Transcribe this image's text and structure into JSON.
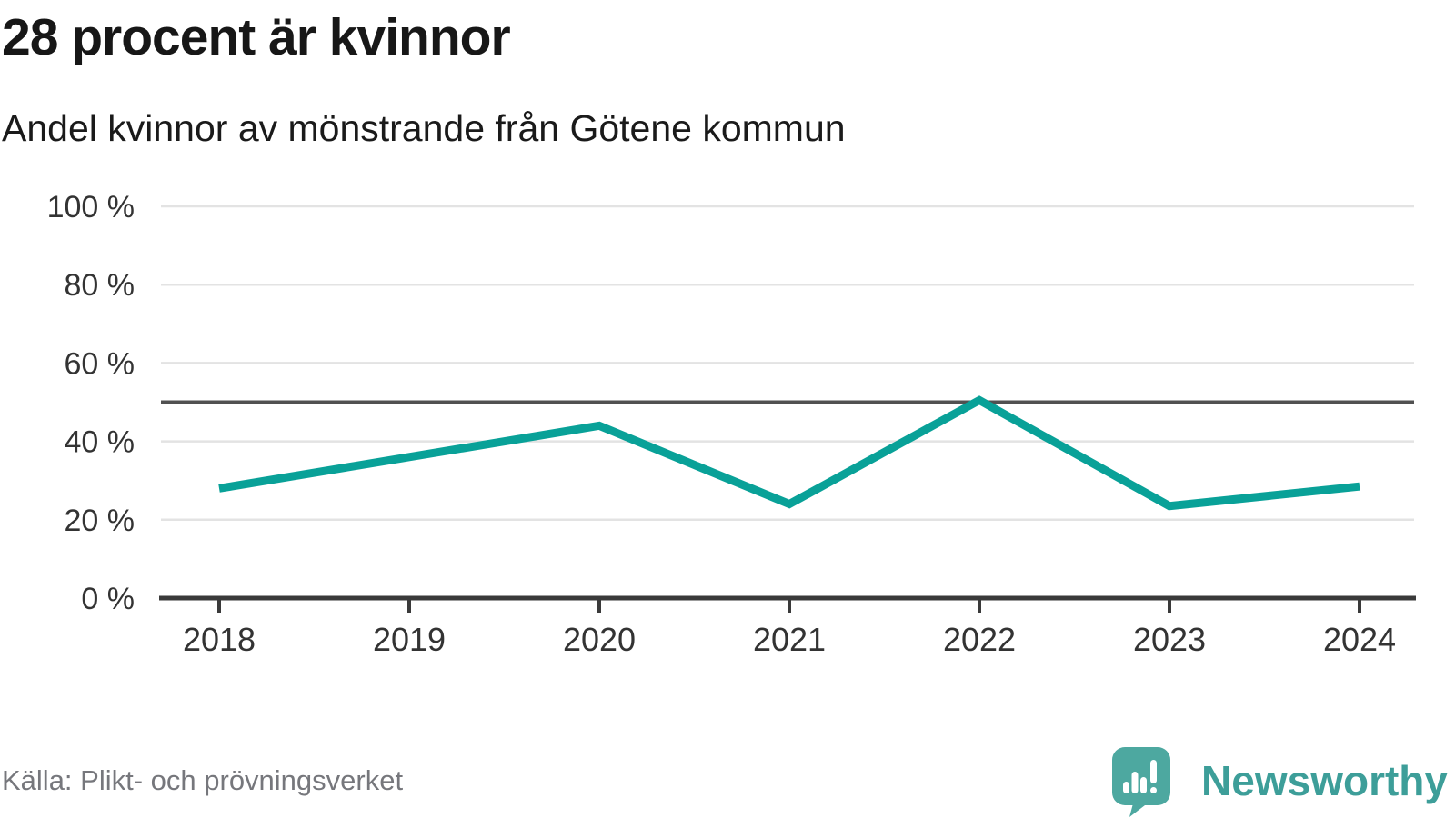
{
  "header": {
    "title": "28 procent är kvinnor",
    "subtitle": "Andel kvinnor av mönstrande från Götene kommun"
  },
  "footer": {
    "source": "Källa: Plikt- och prövningsverket",
    "brand": "Newsworthy"
  },
  "colors": {
    "line": "#09a198",
    "reference_line": "#515151",
    "grid": "#e3e3e3",
    "axis": "#3a3a3a",
    "tick_label": "#333333",
    "source_text": "#76777c",
    "brand_teal": "#3d9e99",
    "logo_icon_teal": "#4da8a0"
  },
  "chart_data": {
    "type": "line",
    "title": "28 procent är kvinnor",
    "subtitle": "Andel kvinnor av mönstrande från Götene kommun",
    "categories": [
      "2018",
      "2019",
      "2020",
      "2021",
      "2022",
      "2023",
      "2024"
    ],
    "values": [
      28,
      36,
      44,
      24,
      50.5,
      23.5,
      28.5
    ],
    "ylim": [
      0,
      100
    ],
    "yticks": [
      0,
      20,
      40,
      60,
      80,
      100
    ],
    "ytick_labels": [
      "0 %",
      "20 %",
      "40 %",
      "60 %",
      "80 %",
      "100 %"
    ],
    "reference_line": 50,
    "grid": true,
    "legend": "none",
    "line_color": "#09a198"
  }
}
